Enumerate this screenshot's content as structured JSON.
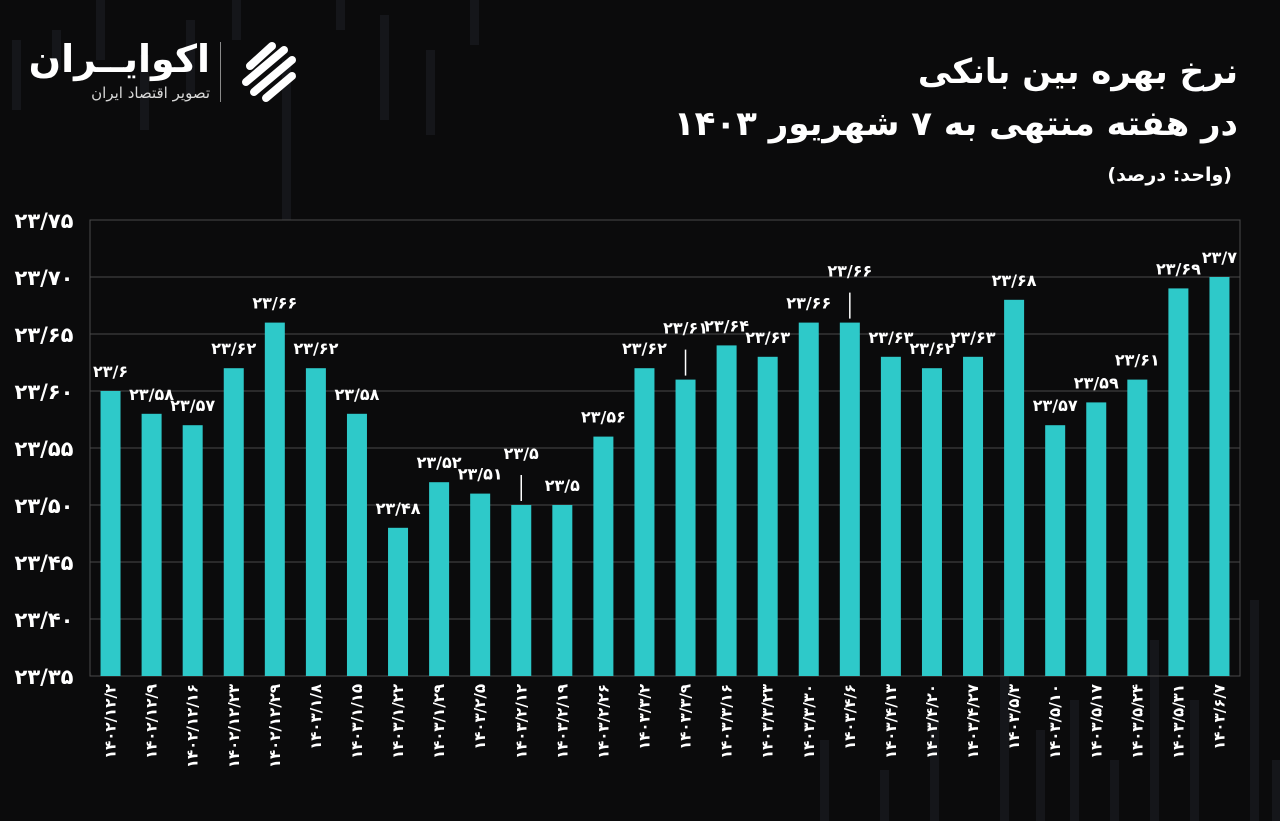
{
  "header": {
    "title_line1": "نرخ بهره بین بانکی",
    "title_line2": "در هفته منتهی به ۷ شهریور ۱۴۰۳",
    "unit": "(واحد: درصد)"
  },
  "brand": {
    "name": "اکوایــران",
    "tagline": "تصویر اقتصاد ایران",
    "logo_icon": "stripes-circle-icon"
  },
  "colors": {
    "bar": "#2ec9c9",
    "highlight": "#ffc20e",
    "grid": "#4a4a4a",
    "text": "#ffffff"
  },
  "chart_data": {
    "type": "bar",
    "title": "نرخ بهره بین بانکی در هفته منتهی به ۷ شهریور ۱۴۰۳",
    "ylabel": "",
    "xlabel": "",
    "ylim": [
      23.35,
      23.75
    ],
    "grid": true,
    "highlight_index": 28,
    "yticks": [
      "۲۳/۳۵",
      "۲۳/۴۰",
      "۲۳/۴۵",
      "۲۳/۵۰",
      "۲۳/۵۵",
      "۲۳/۶۰",
      "۲۳/۶۵",
      "۲۳/۷۰",
      "۲۳/۷۵"
    ],
    "ytick_values": [
      23.35,
      23.4,
      23.45,
      23.5,
      23.55,
      23.6,
      23.65,
      23.7,
      23.75
    ],
    "categories": [
      "۱۴۰۲/۱۲/۲",
      "۱۴۰۲/۱۲/۹",
      "۱۴۰۲/۱۲/۱۶",
      "۱۴۰۲/۱۲/۲۳",
      "۱۴۰۲/۱۲/۲۹",
      "۱۴۰۳/۱/۸",
      "۱۴۰۳/۱/۱۵",
      "۱۴۰۳/۱/۲۲",
      "۱۴۰۳/۱/۲۹",
      "۱۴۰۳/۲/۵",
      "۱۴۰۳/۲/۱۲",
      "۱۴۰۳/۲/۱۹",
      "۱۴۰۳/۲/۲۶",
      "۱۴۰۳/۳/۲",
      "۱۴۰۳/۳/۹",
      "۱۴۰۳/۳/۱۶",
      "۱۴۰۳/۳/۲۳",
      "۱۴۰۳/۳/۳۰",
      "۱۴۰۳/۴/۶",
      "۱۴۰۳/۴/۱۳",
      "۱۴۰۳/۴/۲۰",
      "۱۴۰۳/۴/۲۷",
      "۱۴۰۳/۵/۳",
      "۱۴۰۳/۵/۱۰",
      "۱۴۰۳/۵/۱۷",
      "۱۴۰۳/۵/۲۴",
      "۱۴۰۳/۵/۳۱",
      "۱۴۰۳/۶/۷"
    ],
    "values": [
      23.6,
      23.58,
      23.57,
      23.62,
      23.66,
      23.62,
      23.58,
      23.48,
      23.52,
      23.51,
      23.5,
      23.5,
      23.56,
      23.62,
      23.61,
      23.64,
      23.63,
      23.66,
      23.66,
      23.63,
      23.62,
      23.63,
      23.68,
      23.57,
      23.59,
      23.61,
      23.69,
      23.7
    ],
    "labels": [
      "۲۳/۶",
      "۲۳/۵۸",
      "۲۳/۵۷",
      "۲۳/۶۲",
      "۲۳/۶۶",
      "۲۳/۶۲",
      "۲۳/۵۸",
      "۲۳/۴۸",
      "۲۳/۵۲",
      "۲۳/۵۱",
      "۲۳/۵",
      "۲۳/۵",
      "۲۳/۵۶",
      "۲۳/۶۲",
      "۲۳/۶۱",
      "۲۳/۶۴",
      "۲۳/۶۳",
      "۲۳/۶۶",
      "۲۳/۶۶",
      "۲۳/۶۳",
      "۲۳/۶۲",
      "۲۳/۶۳",
      "۲۳/۶۸",
      "۲۳/۵۷",
      "۲۳/۵۹",
      "۲۳/۶۱",
      "۲۳/۶۹",
      "۲۳/۷"
    ]
  }
}
